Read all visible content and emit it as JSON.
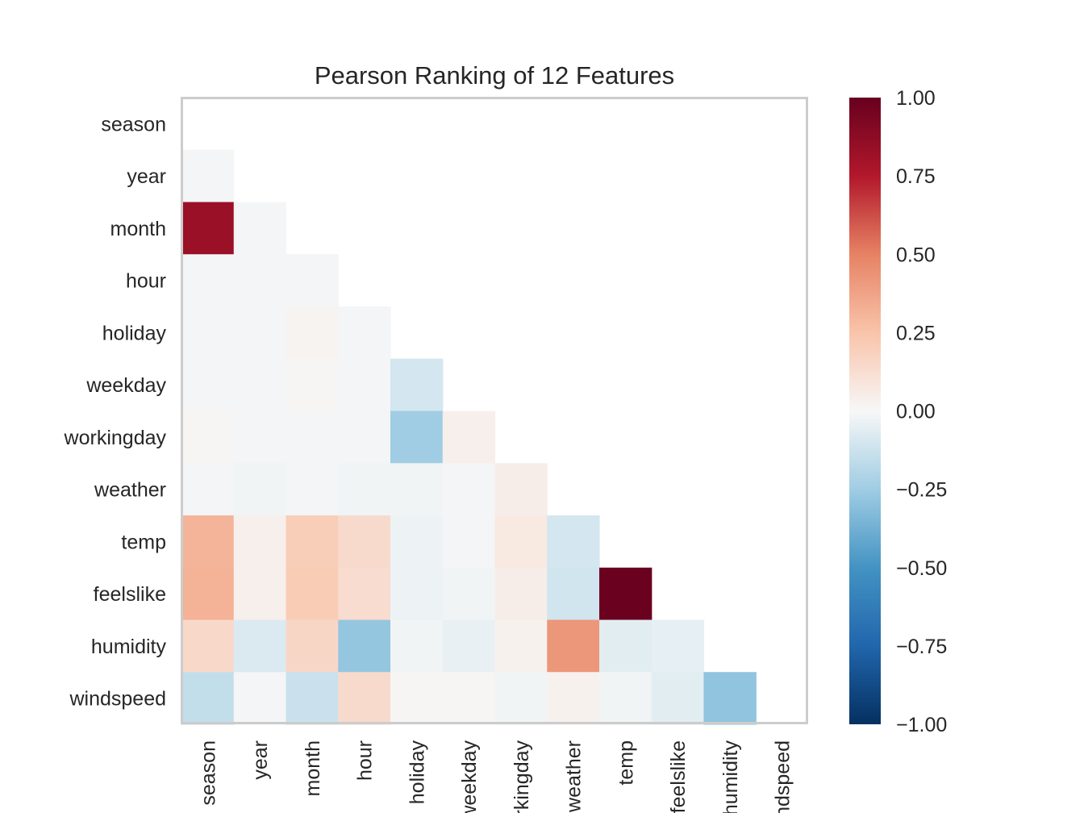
{
  "chart_data": {
    "type": "heatmap",
    "title": "Pearson Ranking of 12 Features",
    "xlabel": "",
    "ylabel": "",
    "features": [
      "season",
      "year",
      "month",
      "hour",
      "holiday",
      "weekday",
      "workingday",
      "weather",
      "temp",
      "feelslike",
      "humidity",
      "windspeed"
    ],
    "x_tick_labels": [
      "season",
      "year",
      "month",
      "hour",
      "holiday",
      "weekday",
      "workingday",
      "weather",
      "temp",
      "feelslike",
      "humidity",
      "windspeed"
    ],
    "mask": "upper triangle and diagonal hidden",
    "colormap": "RdBu_r",
    "vmin": -1.0,
    "vmax": 1.0,
    "colorbar_ticks": [
      "1.00",
      "0.75",
      "0.50",
      "0.25",
      "0.00",
      "−0.25",
      "−0.50",
      "−0.75",
      "−1.00"
    ],
    "colorbar_tick_values": [
      1.0,
      0.75,
      0.5,
      0.25,
      0.0,
      -0.25,
      -0.5,
      -0.75,
      -1.0
    ],
    "values": [
      [
        null,
        null,
        null,
        null,
        null,
        null,
        null,
        null,
        null,
        null,
        null,
        null
      ],
      [
        -0.01,
        null,
        null,
        null,
        null,
        null,
        null,
        null,
        null,
        null,
        null,
        null
      ],
      [
        0.83,
        -0.01,
        null,
        null,
        null,
        null,
        null,
        null,
        null,
        null,
        null,
        null
      ],
      [
        -0.01,
        -0.01,
        -0.01,
        null,
        null,
        null,
        null,
        null,
        null,
        null,
        null,
        null
      ],
      [
        -0.01,
        -0.01,
        0.02,
        -0.01,
        null,
        null,
        null,
        null,
        null,
        null,
        null,
        null
      ],
      [
        -0.01,
        -0.01,
        0.01,
        -0.01,
        -0.1,
        null,
        null,
        null,
        null,
        null,
        null,
        null
      ],
      [
        0.01,
        -0.01,
        -0.01,
        -0.01,
        -0.25,
        0.04,
        null,
        null,
        null,
        null,
        null,
        null
      ],
      [
        -0.01,
        -0.02,
        -0.01,
        -0.02,
        -0.02,
        -0.01,
        0.05,
        null,
        null,
        null,
        null,
        null
      ],
      [
        0.31,
        0.04,
        0.2,
        0.14,
        -0.03,
        -0.01,
        0.07,
        -0.1,
        null,
        null,
        null,
        null
      ],
      [
        0.32,
        0.04,
        0.21,
        0.13,
        -0.03,
        -0.02,
        0.05,
        -0.11,
        0.99,
        null,
        null,
        null
      ],
      [
        0.15,
        -0.08,
        0.16,
        -0.28,
        -0.02,
        -0.04,
        0.03,
        0.42,
        -0.06,
        -0.05,
        null,
        null
      ],
      [
        -0.15,
        -0.01,
        -0.13,
        0.14,
        0.01,
        0.01,
        -0.02,
        0.03,
        -0.02,
        -0.06,
        -0.29,
        null
      ]
    ]
  }
}
